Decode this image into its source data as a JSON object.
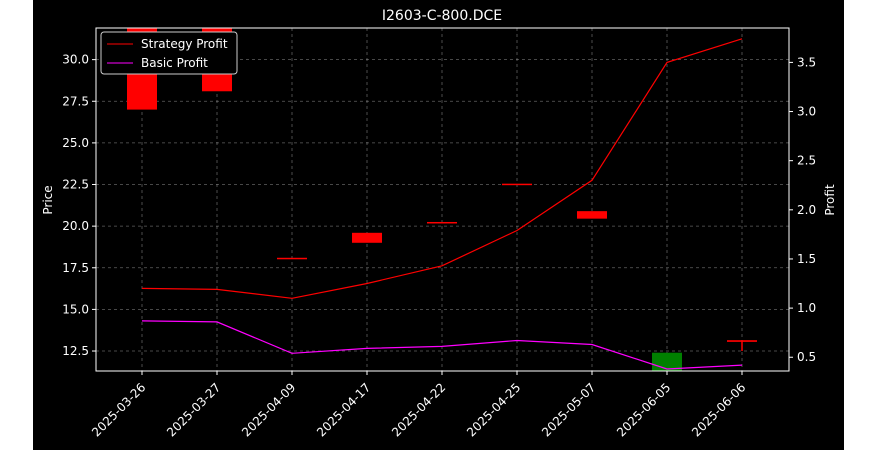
{
  "chart_data": {
    "title": "I2603-C-800.DCE",
    "type": "candlestick+line",
    "background": "#000000",
    "grid": true,
    "legend_position": "upper-left",
    "xlabel": "",
    "categories": [
      "2025-03-26",
      "2025-03-27",
      "2025-04-09",
      "2025-04-17",
      "2025-04-22",
      "2025-04-25",
      "2025-05-07",
      "2025-06-05",
      "2025-06-06"
    ],
    "left_axis": {
      "label": "Price",
      "ylim": [
        11.3,
        31.9
      ],
      "ticks": [
        12.5,
        15.0,
        17.5,
        20.0,
        22.5,
        25.0,
        27.5,
        30.0
      ],
      "tick_labels": [
        "12.5",
        "15.0",
        "17.5",
        "20.0",
        "22.5",
        "25.0",
        "27.5",
        "30.0"
      ]
    },
    "right_axis": {
      "label": "Profit",
      "ylim": [
        0.36,
        3.85
      ],
      "ticks": [
        0.5,
        1.0,
        1.5,
        2.0,
        2.5,
        3.0,
        3.5
      ],
      "tick_labels": [
        "0.5",
        "1.0",
        "1.5",
        "2.0",
        "2.5",
        "3.0",
        "3.5"
      ]
    },
    "candles": [
      {
        "x": "2025-03-26",
        "open": 31.9,
        "close": 27.0,
        "color": "#ff0000"
      },
      {
        "x": "2025-03-27",
        "open": 31.9,
        "close": 28.1,
        "color": "#ff0000"
      },
      {
        "x": "2025-04-09",
        "open": 18.1,
        "close": 18.05,
        "color": "#ff0000"
      },
      {
        "x": "2025-04-17",
        "open": 19.6,
        "close": 19.0,
        "color": "#ff0000"
      },
      {
        "x": "2025-04-22",
        "open": 20.25,
        "close": 20.2,
        "color": "#ff0000"
      },
      {
        "x": "2025-04-25",
        "open": 22.55,
        "close": 22.5,
        "color": "#ff0000"
      },
      {
        "x": "2025-05-07",
        "open": 20.9,
        "close": 20.45,
        "color": "#ff0000"
      },
      {
        "x": "2025-06-05",
        "open": 11.3,
        "close": 12.4,
        "color": "#008000"
      },
      {
        "x": "2025-06-06",
        "open": 13.15,
        "close": 13.05,
        "high": 13.15,
        "low": 12.5,
        "color": "#ff0000"
      }
    ],
    "series": [
      {
        "name": "Strategy Profit",
        "axis": "right",
        "color": "#ff0000",
        "values": [
          1.2,
          1.19,
          1.1,
          1.25,
          1.43,
          1.79,
          2.3,
          3.5,
          3.74
        ]
      },
      {
        "name": "Basic Profit",
        "axis": "right",
        "color": "#ff00ff",
        "values": [
          0.87,
          0.86,
          0.54,
          0.59,
          0.61,
          0.67,
          0.63,
          0.38,
          0.42
        ]
      }
    ]
  }
}
